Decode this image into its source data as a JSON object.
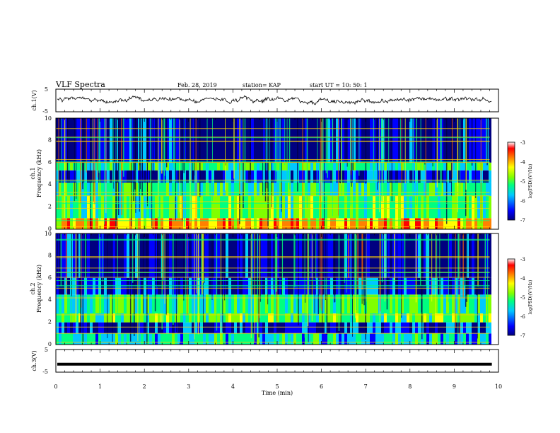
{
  "header": {
    "title": "VLF Spectra",
    "date": "Feb. 28, 2019",
    "station": "station= KAP",
    "start": "start  UT =   10: 50: 1"
  },
  "colors": {
    "colormap": [
      "#000080",
      "#0000ff",
      "#00c8ff",
      "#00ff80",
      "#80ff00",
      "#ffff00",
      "#ff8000",
      "#ff0000",
      "#ffffff"
    ],
    "trace": "#000000",
    "background": "#ffffff"
  },
  "chart_data": [
    {
      "type": "line",
      "panel": "ch1-waveform",
      "ylabel": "ch.1(V)",
      "yticks": [
        "5",
        "-5"
      ],
      "ylim": [
        -5,
        5
      ],
      "xlim": [
        0,
        10
      ],
      "description_values": {
        "approx_range_v": [
          -1.5,
          1.5
        ]
      }
    },
    {
      "type": "heatmap",
      "panel": "ch1-spectrogram",
      "ylabel_channel": "ch.1",
      "ylabel": "Frequency (kHz)",
      "yticks": [
        "0",
        "2",
        "4",
        "6",
        "8",
        "10"
      ],
      "ylim": [
        0,
        10
      ],
      "xlim": [
        0,
        10
      ],
      "data_end_min": 9.8,
      "colorbar": {
        "label": "log(PSD)(V²/Hz)",
        "ticks": [
          "-3",
          "-4",
          "-5",
          "-6",
          "-7"
        ],
        "range": [
          -7,
          -3
        ]
      },
      "bands_khz": [
        {
          "from": 0.0,
          "to": 1.0,
          "level": -4.0
        },
        {
          "from": 1.0,
          "to": 3.0,
          "level": -5.0
        },
        {
          "from": 3.0,
          "to": 4.2,
          "level": -5.3
        },
        {
          "from": 4.2,
          "to": 5.3,
          "level": -6.3
        },
        {
          "from": 5.3,
          "to": 6.0,
          "level": -5.3
        },
        {
          "from": 6.0,
          "to": 10.0,
          "level": -6.6
        }
      ]
    },
    {
      "type": "heatmap",
      "panel": "ch2-spectrogram",
      "ylabel_channel": "ch.2",
      "ylabel": "Frequency (kHz)",
      "yticks": [
        "0",
        "2",
        "4",
        "6",
        "8",
        "10"
      ],
      "ylim": [
        0,
        10
      ],
      "xlim": [
        0,
        10
      ],
      "data_end_min": 9.8,
      "colorbar": {
        "label": "log(PSD)(V²/Hz)",
        "ticks": [
          "-3",
          "-4",
          "-5",
          "-6",
          "-7"
        ],
        "range": [
          -7,
          -3
        ]
      },
      "bands_khz": [
        {
          "from": 0.0,
          "to": 1.0,
          "level": -5.5
        },
        {
          "from": 1.0,
          "to": 2.0,
          "level": -6.3
        },
        {
          "from": 2.0,
          "to": 2.8,
          "level": -5.0
        },
        {
          "from": 2.8,
          "to": 4.5,
          "level": -5.2
        },
        {
          "from": 4.5,
          "to": 6.0,
          "level": -6.3
        },
        {
          "from": 6.0,
          "to": 10.0,
          "level": -6.6
        }
      ]
    },
    {
      "type": "line",
      "panel": "ch3-waveform",
      "ylabel": "ch.3(V)",
      "yticks": [
        "5",
        "-5"
      ],
      "ylim": [
        -5,
        5
      ],
      "xlim": [
        0,
        10
      ],
      "constant_value_v": -1.5
    }
  ],
  "xaxis": {
    "label": "Time  (min)",
    "ticks": [
      "0",
      "1",
      "2",
      "3",
      "4",
      "5",
      "6",
      "7",
      "8",
      "9",
      "10"
    ]
  }
}
